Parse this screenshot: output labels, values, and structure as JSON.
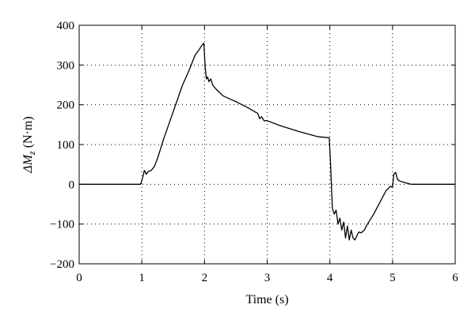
{
  "chart_data": {
    "type": "line",
    "title": "",
    "xlabel": "Time (s)",
    "ylabel_main": "ΔM",
    "ylabel_sub": "z",
    "ylabel_unit": " (N·m)",
    "xlim": [
      0,
      6
    ],
    "ylim": [
      -200,
      400
    ],
    "xticks": [
      0,
      1,
      2,
      3,
      4,
      5,
      6
    ],
    "yticks": [
      -200,
      -100,
      0,
      100,
      200,
      300,
      400
    ],
    "xtick_labels": [
      "0",
      "1",
      "2",
      "3",
      "4",
      "5",
      "6"
    ],
    "ytick_labels": [
      "−200",
      "−100",
      "0",
      "100",
      "200",
      "300",
      "400"
    ],
    "grid": true,
    "series": [
      {
        "x": [
          0,
          0.98,
          1.01,
          1.04,
          1.07,
          1.1,
          1.15,
          1.2,
          1.25,
          1.35,
          1.45,
          1.55,
          1.65,
          1.75,
          1.85,
          1.92,
          1.96,
          1.99,
          2.01,
          2.03,
          2.05,
          2.07,
          2.1,
          2.13,
          2.18,
          2.3,
          2.5,
          2.7,
          2.85,
          2.88,
          2.91,
          2.95,
          3.0,
          3.2,
          3.5,
          3.8,
          3.99,
          4.01,
          4.04,
          4.07,
          4.1,
          4.13,
          4.16,
          4.19,
          4.22,
          4.25,
          4.28,
          4.31,
          4.34,
          4.37,
          4.4,
          4.43,
          4.46,
          4.5,
          4.55,
          4.6,
          4.7,
          4.8,
          4.9,
          4.97,
          5.0,
          5.02,
          5.05,
          5.08,
          5.12,
          5.18,
          5.3,
          6.0
        ],
        "y": [
          0,
          0,
          15,
          35,
          25,
          32,
          35,
          45,
          65,
          115,
          160,
          205,
          250,
          285,
          325,
          340,
          350,
          355,
          295,
          265,
          270,
          258,
          265,
          250,
          240,
          222,
          208,
          192,
          178,
          165,
          170,
          160,
          160,
          148,
          133,
          120,
          117,
          55,
          -60,
          -75,
          -65,
          -100,
          -85,
          -115,
          -95,
          -135,
          -105,
          -140,
          -115,
          -135,
          -140,
          -130,
          -120,
          -122,
          -115,
          -100,
          -75,
          -45,
          -15,
          -5,
          -8,
          25,
          30,
          12,
          8,
          5,
          0,
          0
        ]
      }
    ]
  }
}
